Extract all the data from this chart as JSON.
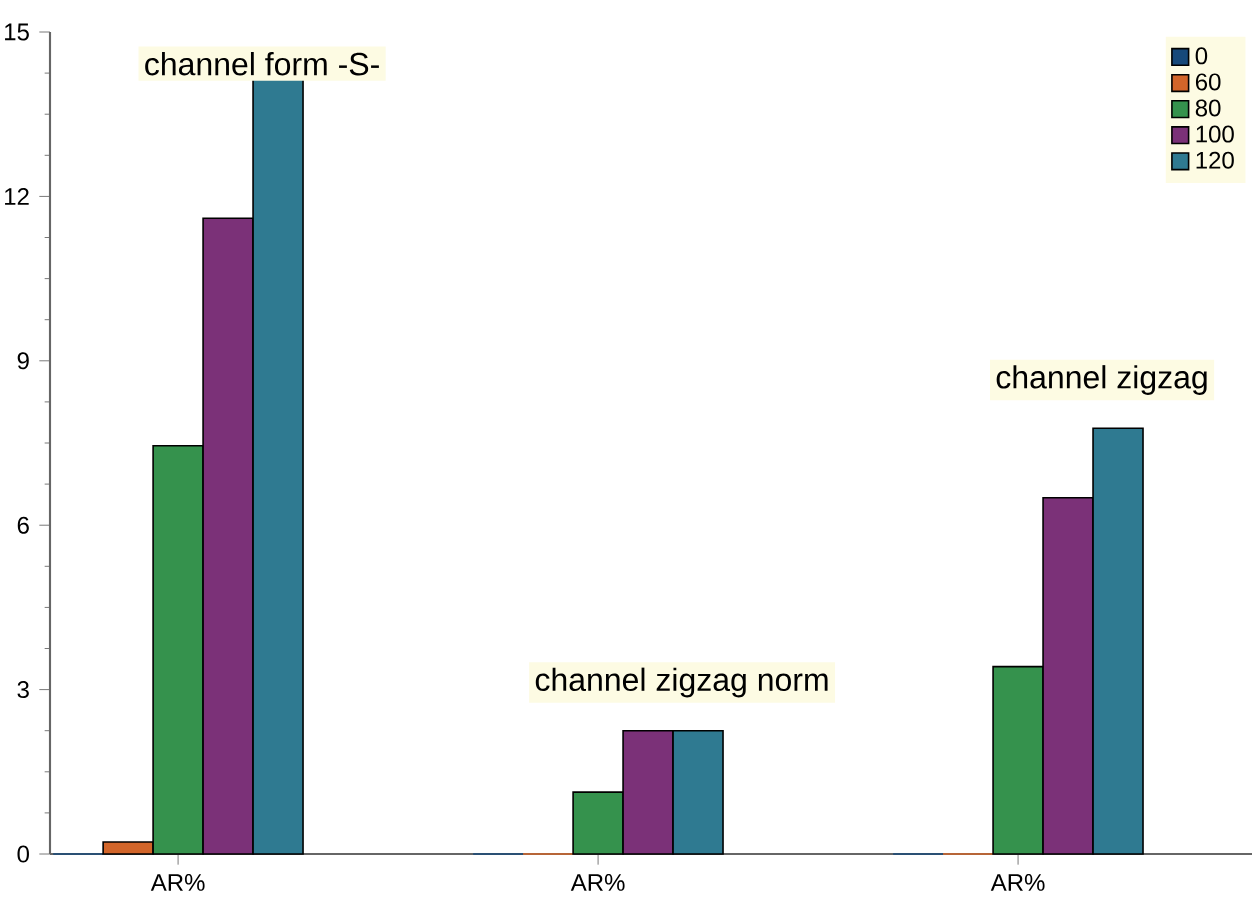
{
  "chart_data": {
    "type": "bar",
    "categories": [
      "AR%",
      "AR%",
      "AR%"
    ],
    "series": [
      {
        "name": "0",
        "color": "#17497a",
        "values": [
          0,
          0,
          0
        ]
      },
      {
        "name": "60",
        "color": "#d2652a",
        "values": [
          0.22,
          0,
          0
        ]
      },
      {
        "name": "80",
        "color": "#35924d",
        "values": [
          7.45,
          1.13,
          3.42
        ]
      },
      {
        "name": "100",
        "color": "#7b3178",
        "values": [
          11.6,
          2.25,
          6.5
        ]
      },
      {
        "name": "120",
        "color": "#2f7a91",
        "values": [
          14.15,
          2.25,
          7.77
        ]
      }
    ],
    "ylim": [
      0,
      15
    ],
    "yticks": [
      0,
      3,
      6,
      9,
      12,
      15
    ],
    "annotations": [
      "channel form -S-",
      "channel zigzag norm",
      "channel zigzag"
    ],
    "legend": "top right",
    "grid": false
  }
}
